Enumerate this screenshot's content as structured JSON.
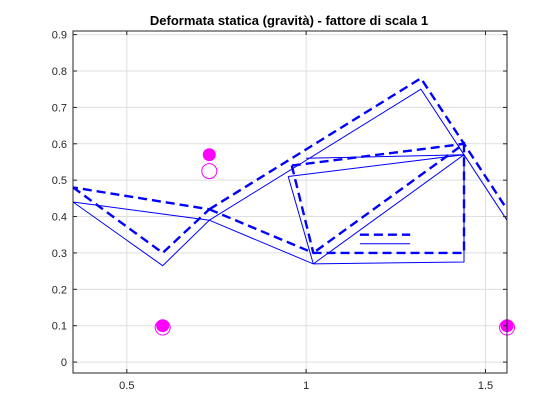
{
  "chart_data": {
    "type": "line",
    "title": "Deformata statica (gravità) - fattore di scala 1",
    "xlabel": "",
    "ylabel": "",
    "xlim": [
      0.35,
      1.56
    ],
    "ylim": [
      -0.03,
      0.91
    ],
    "xticks": [
      0.5,
      1,
      1.5
    ],
    "yticks": [
      0,
      0.1,
      0.2,
      0.3,
      0.4,
      0.5,
      0.6,
      0.7,
      0.8,
      0.9
    ],
    "xtick_labels": [
      "0.5",
      "1",
      "1.5"
    ],
    "ytick_labels": [
      "0",
      "0.1",
      "0.2",
      "0.3",
      "0.4",
      "0.5",
      "0.6",
      "0.7",
      "0.8",
      "0.9"
    ],
    "grid": true,
    "colors": {
      "structure": "#0000ff",
      "supports": "#ff00ff",
      "grid": "#dfdfdf",
      "axes": "#262626"
    },
    "series": [
      {
        "style": "solid",
        "segments": [
          [
            [
              0.35,
              0.44
            ],
            [
              0.6,
              0.265
            ],
            [
              0.73,
              0.39
            ],
            [
              0.35,
              0.44
            ]
          ],
          [
            [
              0.73,
              0.39
            ],
            [
              1.02,
              0.27
            ],
            [
              1.44,
              0.275
            ],
            [
              1.44,
              0.57
            ],
            [
              1.02,
              0.27
            ]
          ],
          [
            [
              0.95,
              0.51
            ],
            [
              1.02,
              0.27
            ]
          ],
          [
            [
              0.95,
              0.51
            ],
            [
              1.44,
              0.57
            ],
            [
              1.56,
              0.39
            ]
          ],
          [
            [
              0.73,
              0.39
            ],
            [
              1.32,
              0.75
            ],
            [
              1.44,
              0.57
            ]
          ],
          [
            [
              1.0,
              0.56
            ],
            [
              1.44,
              0.57
            ]
          ],
          [
            [
              1.15,
              0.325
            ],
            [
              1.29,
              0.325
            ]
          ]
        ]
      },
      {
        "style": "dashed",
        "segments": [
          [
            [
              0.35,
              0.48
            ],
            [
              0.6,
              0.3
            ],
            [
              0.73,
              0.42
            ],
            [
              0.35,
              0.48
            ]
          ],
          [
            [
              0.73,
              0.42
            ],
            [
              1.02,
              0.3
            ],
            [
              1.44,
              0.3
            ],
            [
              1.44,
              0.6
            ],
            [
              1.02,
              0.3
            ]
          ],
          [
            [
              0.96,
              0.54
            ],
            [
              1.02,
              0.3
            ]
          ],
          [
            [
              0.96,
              0.54
            ],
            [
              1.44,
              0.6
            ],
            [
              1.56,
              0.42
            ]
          ],
          [
            [
              0.73,
              0.42
            ],
            [
              1.32,
              0.78
            ],
            [
              1.44,
              0.6
            ]
          ],
          [
            [
              1.15,
              0.35
            ],
            [
              1.29,
              0.35
            ]
          ]
        ]
      }
    ],
    "markers": [
      {
        "style": "filled",
        "points": [
          [
            0.6,
            0.1
          ],
          [
            0.73,
            0.57
          ],
          [
            1.56,
            0.1
          ]
        ]
      },
      {
        "style": "hollow",
        "points": [
          [
            0.6,
            0.095
          ],
          [
            0.73,
            0.525
          ],
          [
            1.56,
            0.095
          ]
        ]
      }
    ]
  }
}
